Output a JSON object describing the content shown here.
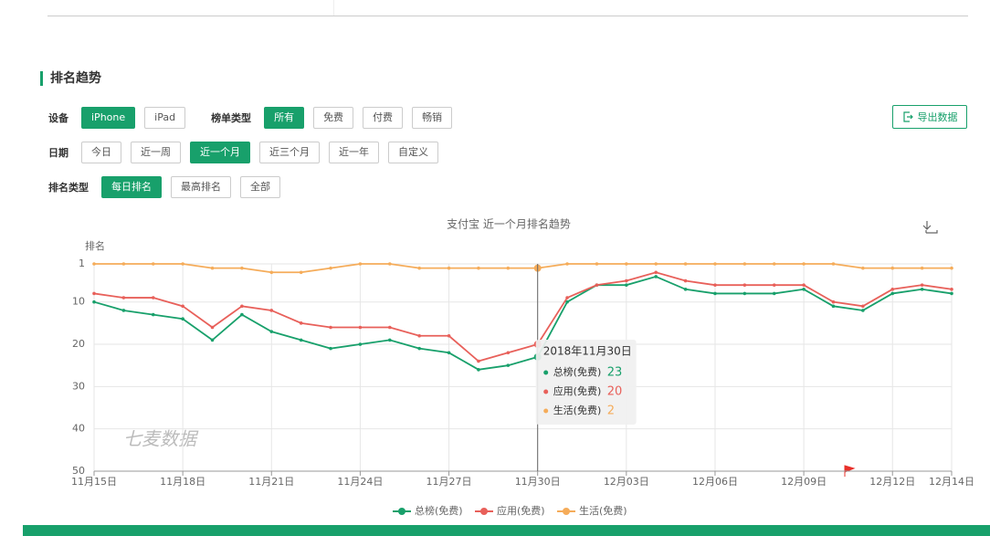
{
  "section_title": "排名趋势",
  "filters": [
    [
      {
        "label": "设备",
        "options": [
          "iPhone",
          "iPad"
        ],
        "selected": 0
      },
      {
        "label": "榜单类型",
        "options": [
          "所有",
          "免费",
          "付费",
          "畅销"
        ],
        "selected": 0
      }
    ],
    [
      {
        "label": "日期",
        "options": [
          "今日",
          "近一周",
          "近一个月",
          "近三个月",
          "近一年",
          "自定义"
        ],
        "selected": 2
      }
    ],
    [
      {
        "label": "排名类型",
        "options": [
          "每日排名",
          "最高排名",
          "全部"
        ],
        "selected": 0
      }
    ]
  ],
  "export_button": "导出数据",
  "chart_data": {
    "type": "line",
    "title": "支付宝 近一个月排名趋势",
    "y_label": "排名",
    "watermark": "七麦数据",
    "tooltip_date": "2018年11月30日",
    "categories": [
      "11月15日",
      null,
      null,
      "11月18日",
      null,
      null,
      "11月21日",
      null,
      null,
      "11月24日",
      null,
      null,
      "11月27日",
      null,
      null,
      "11月30日",
      null,
      null,
      "12月03日",
      null,
      null,
      "12月06日",
      null,
      null,
      "12月09日",
      null,
      null,
      "12月12日",
      null,
      "12月14日"
    ],
    "series": [
      {
        "name": "总榜(免费)",
        "color": "#18a06b",
        "values": [
          10,
          12,
          13,
          14,
          19,
          13,
          17,
          19,
          21,
          20,
          19,
          21,
          22,
          26,
          25,
          23,
          10,
          6,
          6,
          4,
          7,
          8,
          8,
          8,
          7,
          11,
          12,
          8,
          7,
          8
        ]
      },
      {
        "name": "应用(免费)",
        "color": "#e8605a",
        "values": [
          8,
          9,
          9,
          11,
          16,
          11,
          12,
          15,
          16,
          16,
          16,
          18,
          18,
          24,
          22,
          20,
          9,
          6,
          5,
          3,
          5,
          6,
          6,
          6,
          6,
          10,
          11,
          7,
          6,
          7
        ]
      },
      {
        "name": "生活(免费)",
        "color": "#f5ac5a",
        "values": [
          1,
          1,
          1,
          1,
          2,
          2,
          3,
          3,
          2,
          1,
          1,
          2,
          2,
          2,
          2,
          2,
          1,
          1,
          1,
          1,
          1,
          1,
          1,
          1,
          1,
          1,
          2,
          2,
          2,
          2
        ]
      }
    ],
    "ylim": [
      50,
      1
    ],
    "yticks": [
      1,
      10,
      20,
      30,
      40,
      50
    ],
    "grid": true
  }
}
